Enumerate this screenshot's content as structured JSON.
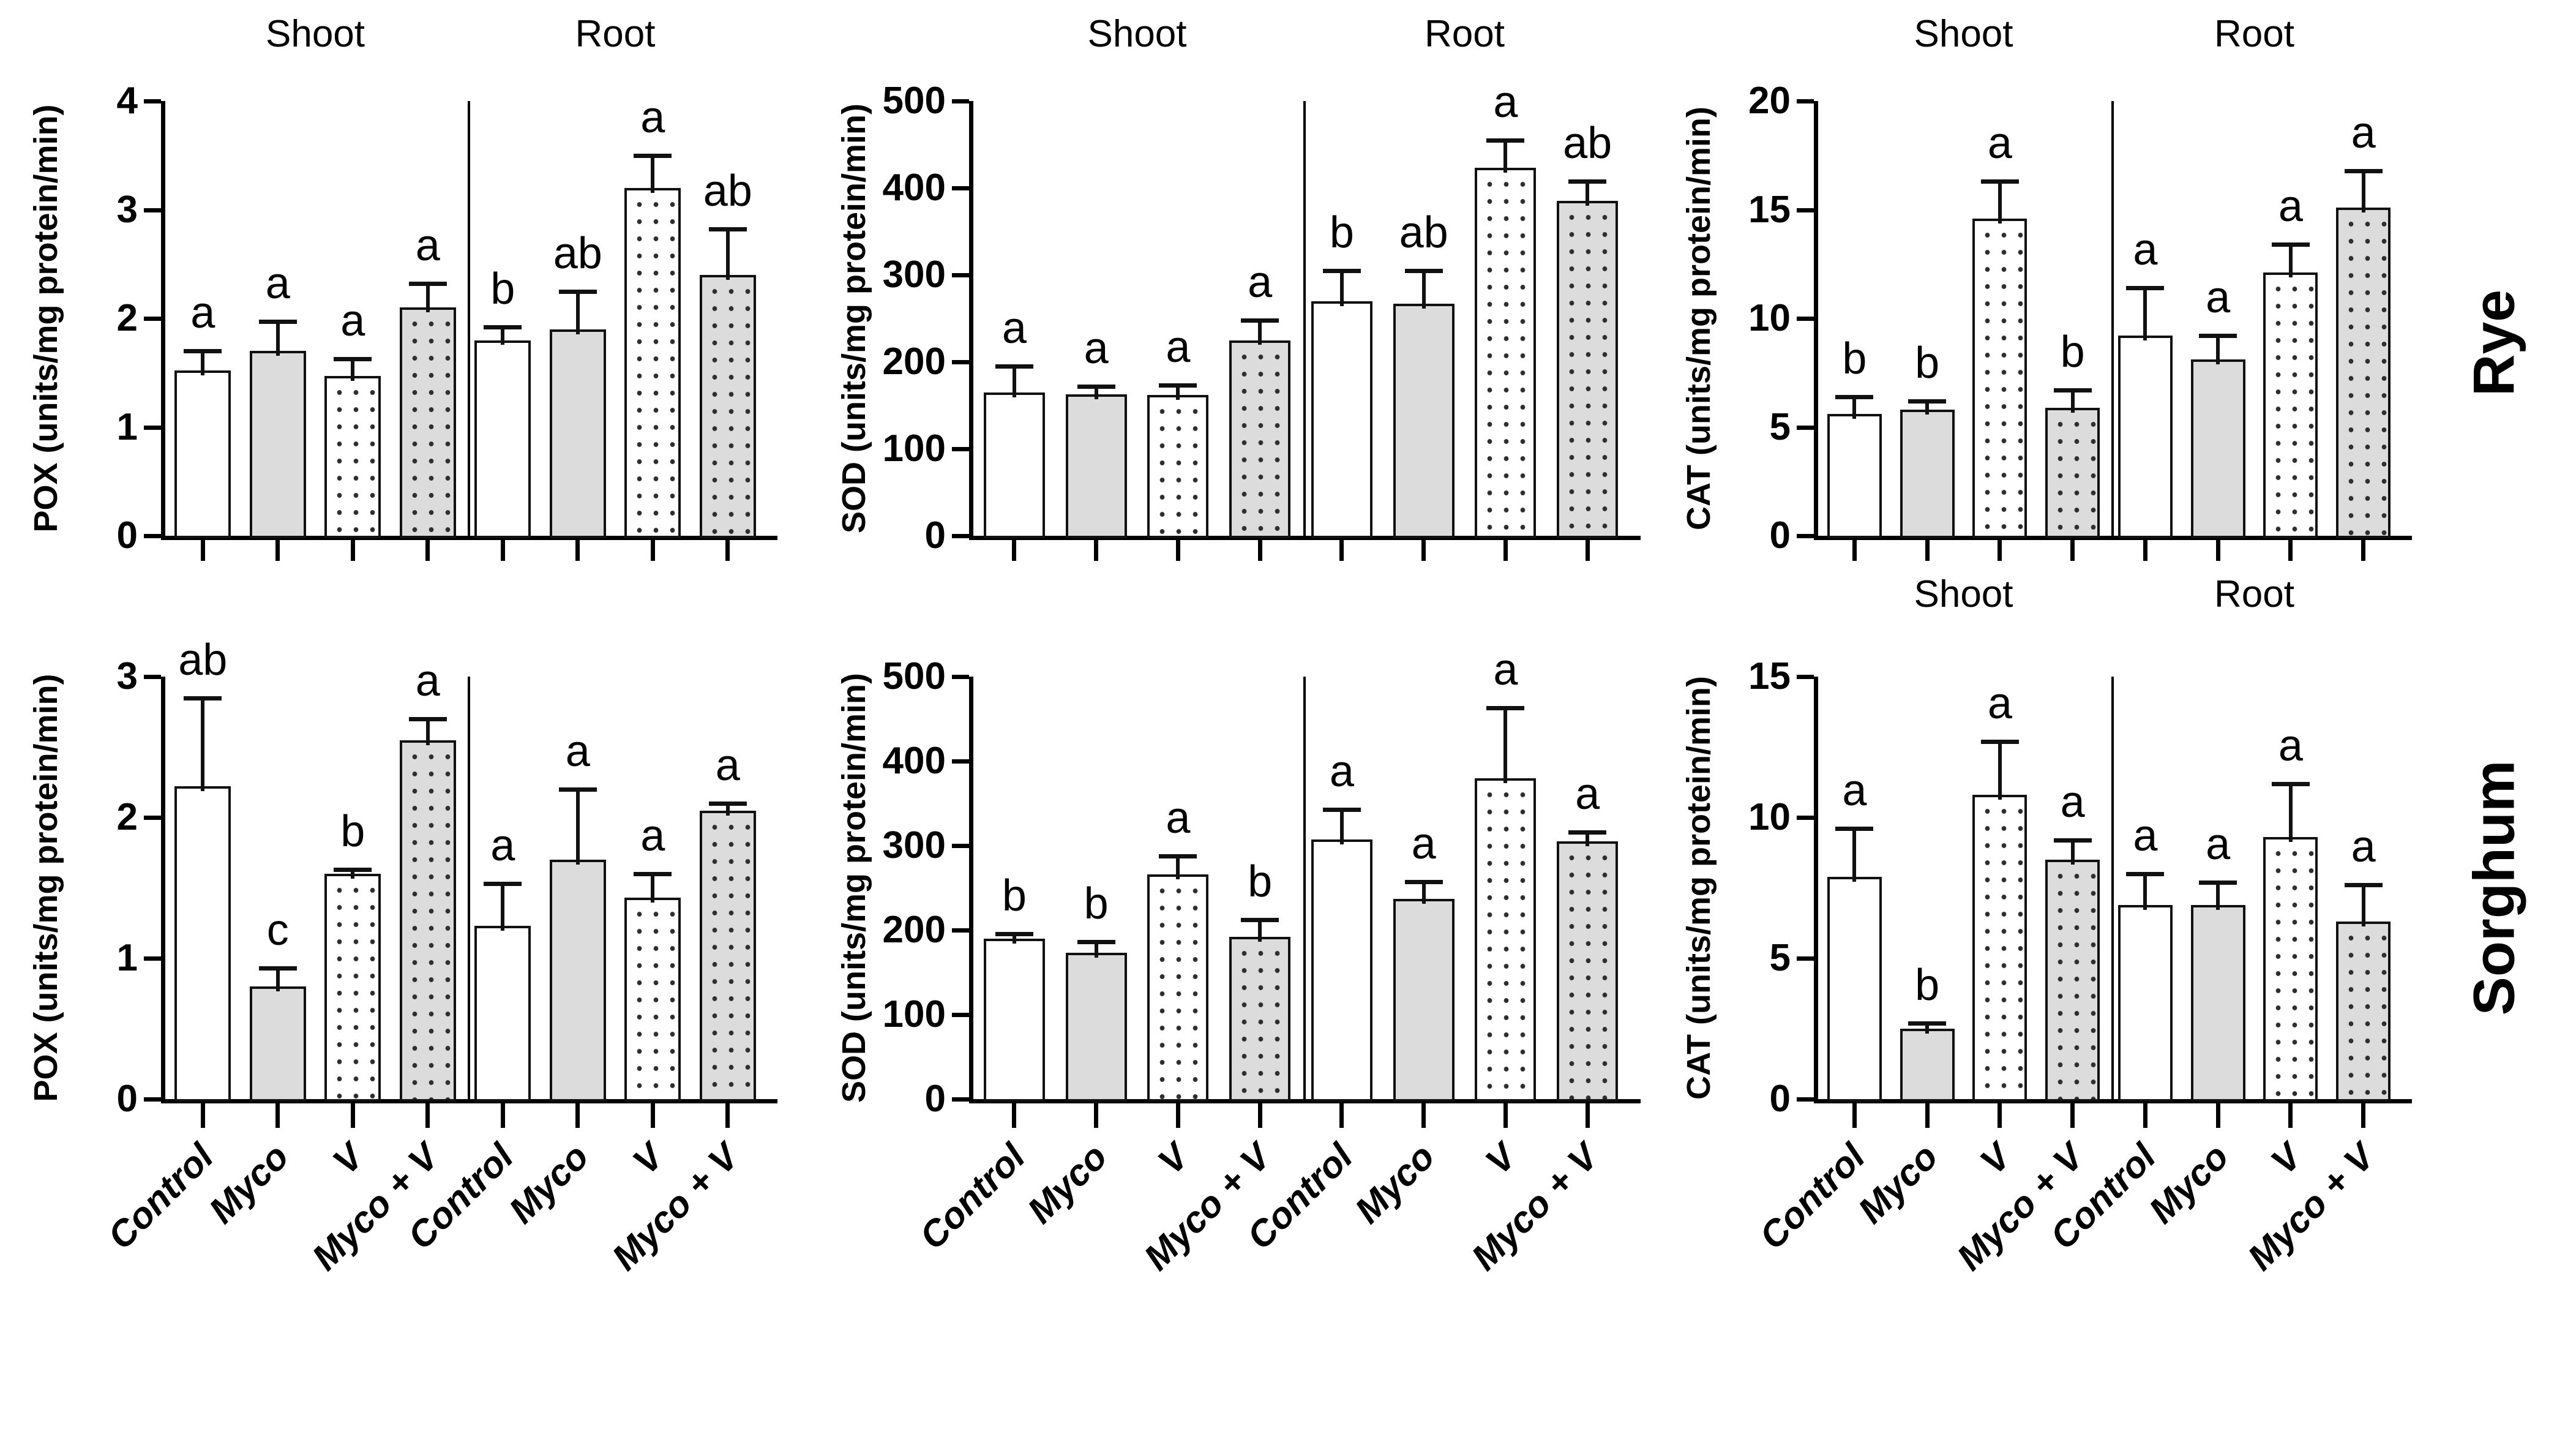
{
  "figure": {
    "description": "Six-panel bar figure of antioxidant enzyme activities (POX, SOD, CAT) in shoot and root of Rye and Sorghum under Control, Myco, V and Myco + V treatments, with SE error bars and significance letters",
    "tissue_groups": [
      "Shoot",
      "Root"
    ],
    "treatments": [
      "Control",
      "Myco",
      "V",
      "Myco + V"
    ]
  },
  "row_labels": [
    "Rye",
    "Sorghum"
  ],
  "colors": {
    "background": "#ffffff",
    "axis": "#000000",
    "text": "#000000",
    "bar_open_fill": "#ffffff",
    "bar_gray_fill": "#dcdcdc",
    "stipple_dot": "#2e2e2e",
    "bar_border": "#111111"
  },
  "bar_style_legend": {
    "open": "Control - white bar, black outline",
    "solid-gray": "Myco - light gray bar",
    "stipple-white": "V - white bar with black stipple dots",
    "stipple-gray": "Myco + V - gray bar with black stipple dots"
  },
  "chart_data": [
    {
      "id": "pox-rye",
      "type": "bar",
      "row": "Rye",
      "ylabel": "POX (units/mg protein/min)",
      "ylim": [
        0,
        4
      ],
      "yticks": [
        0,
        1,
        2,
        3,
        4
      ],
      "group_headers": [
        "Shoot",
        "Root"
      ],
      "show_group_headers": true,
      "show_x_labels": false,
      "categories": [
        "Control",
        "Myco",
        "V",
        "Myco + V",
        "Control",
        "Myco",
        "V",
        "Myco + V"
      ],
      "values": [
        1.52,
        1.7,
        1.47,
        2.1,
        1.8,
        1.9,
        3.2,
        2.4
      ],
      "errors_up": [
        0.18,
        0.27,
        0.16,
        0.22,
        0.12,
        0.35,
        0.3,
        0.42
      ],
      "sig_letters": [
        "a",
        "a",
        "a",
        "a",
        "b",
        "ab",
        "a",
        "ab"
      ],
      "bar_styles": [
        "open",
        "solid-gray",
        "stipple-white",
        "stipple-gray",
        "open",
        "solid-gray",
        "stipple-white",
        "stipple-gray"
      ]
    },
    {
      "id": "sod-rye",
      "type": "bar",
      "row": "Rye",
      "ylabel": "SOD (units/mg protein/min)",
      "ylim": [
        0,
        500
      ],
      "yticks": [
        0,
        100,
        200,
        300,
        400,
        500
      ],
      "group_headers": [
        "Shoot",
        "Root"
      ],
      "show_group_headers": true,
      "show_x_labels": false,
      "categories": [
        "Control",
        "Myco",
        "V",
        "Myco + V",
        "Control",
        "Myco",
        "V",
        "Myco + V"
      ],
      "values": [
        165,
        163,
        162,
        225,
        270,
        267,
        423,
        385
      ],
      "errors_up": [
        30,
        9,
        11,
        23,
        35,
        38,
        32,
        23
      ],
      "sig_letters": [
        "a",
        "a",
        "a",
        "a",
        "b",
        "ab",
        "a",
        "ab"
      ],
      "bar_styles": [
        "open",
        "solid-gray",
        "stipple-white",
        "stipple-gray",
        "open",
        "solid-gray",
        "stipple-white",
        "stipple-gray"
      ]
    },
    {
      "id": "cat-rye",
      "type": "bar",
      "row": "Rye",
      "ylabel": "CAT (units/mg protein/min)",
      "ylim": [
        0,
        20
      ],
      "yticks": [
        0,
        5,
        10,
        15,
        20
      ],
      "group_headers": [
        "Shoot",
        "Root"
      ],
      "show_group_headers": true,
      "show_x_labels": false,
      "categories": [
        "Control",
        "Myco",
        "V",
        "Myco + V",
        "Control",
        "Myco",
        "V",
        "Myco + V"
      ],
      "values": [
        5.6,
        5.8,
        14.6,
        5.9,
        9.2,
        8.1,
        12.1,
        15.1
      ],
      "errors_up": [
        0.8,
        0.4,
        1.7,
        0.8,
        2.2,
        1.1,
        1.3,
        1.7
      ],
      "sig_letters": [
        "b",
        "b",
        "a",
        "b",
        "a",
        "a",
        "a",
        "a"
      ],
      "bar_styles": [
        "open",
        "solid-gray",
        "stipple-white",
        "stipple-gray",
        "open",
        "solid-gray",
        "stipple-white",
        "stipple-gray"
      ]
    },
    {
      "id": "pox-sorghum",
      "type": "bar",
      "row": "Sorghum",
      "ylabel": "POX (units/mg protein/min)",
      "ylim": [
        0,
        3
      ],
      "yticks": [
        0,
        1,
        2,
        3
      ],
      "group_headers": [
        "Shoot",
        "Root"
      ],
      "show_group_headers": false,
      "show_x_labels": true,
      "categories": [
        "Control",
        "Myco",
        "V",
        "Myco + V",
        "Control",
        "Myco",
        "V",
        "Myco + V"
      ],
      "values": [
        2.22,
        0.8,
        1.6,
        2.55,
        1.23,
        1.7,
        1.43,
        2.05
      ],
      "errors_up": [
        0.63,
        0.13,
        0.03,
        0.15,
        0.3,
        0.5,
        0.17,
        0.05
      ],
      "sig_letters": [
        "ab",
        "c",
        "b",
        "a",
        "a",
        "a",
        "a",
        "a"
      ],
      "bar_styles": [
        "open",
        "solid-gray",
        "stipple-white",
        "stipple-gray",
        "open",
        "solid-gray",
        "stipple-white",
        "stipple-gray"
      ]
    },
    {
      "id": "sod-sorghum",
      "type": "bar",
      "row": "Sorghum",
      "ylabel": "SOD (units/mg protein/min)",
      "ylim": [
        0,
        500
      ],
      "yticks": [
        0,
        100,
        200,
        300,
        400,
        500
      ],
      "group_headers": [
        "Shoot",
        "Root"
      ],
      "show_group_headers": false,
      "show_x_labels": true,
      "categories": [
        "Control",
        "Myco",
        "V",
        "Myco + V",
        "Control",
        "Myco",
        "V",
        "Myco + V"
      ],
      "values": [
        190,
        173,
        266,
        192,
        307,
        237,
        380,
        305
      ],
      "errors_up": [
        6,
        13,
        22,
        20,
        36,
        20,
        83,
        11
      ],
      "sig_letters": [
        "b",
        "b",
        "a",
        "b",
        "a",
        "a",
        "a",
        "a"
      ],
      "bar_styles": [
        "open",
        "solid-gray",
        "stipple-white",
        "stipple-gray",
        "open",
        "solid-gray",
        "stipple-white",
        "stipple-gray"
      ]
    },
    {
      "id": "cat-sorghum",
      "type": "bar",
      "row": "Sorghum",
      "ylabel": "CAT (units/mg protein/min)",
      "ylim": [
        0,
        15
      ],
      "yticks": [
        0,
        5,
        10,
        15
      ],
      "group_headers": [
        "Shoot",
        "Root"
      ],
      "show_group_headers": true,
      "show_x_labels": true,
      "categories": [
        "Control",
        "Myco",
        "V",
        "Myco + V",
        "Control",
        "Myco",
        "V",
        "Myco + V"
      ],
      "values": [
        7.9,
        2.5,
        10.8,
        8.5,
        6.9,
        6.9,
        9.3,
        6.3
      ],
      "errors_up": [
        1.7,
        0.2,
        1.9,
        0.7,
        1.1,
        0.8,
        1.9,
        1.3
      ],
      "sig_letters": [
        "a",
        "b",
        "a",
        "a",
        "a",
        "a",
        "a",
        "a"
      ],
      "bar_styles": [
        "open",
        "solid-gray",
        "stipple-white",
        "stipple-gray",
        "open",
        "solid-gray",
        "stipple-white",
        "stipple-gray"
      ]
    }
  ]
}
